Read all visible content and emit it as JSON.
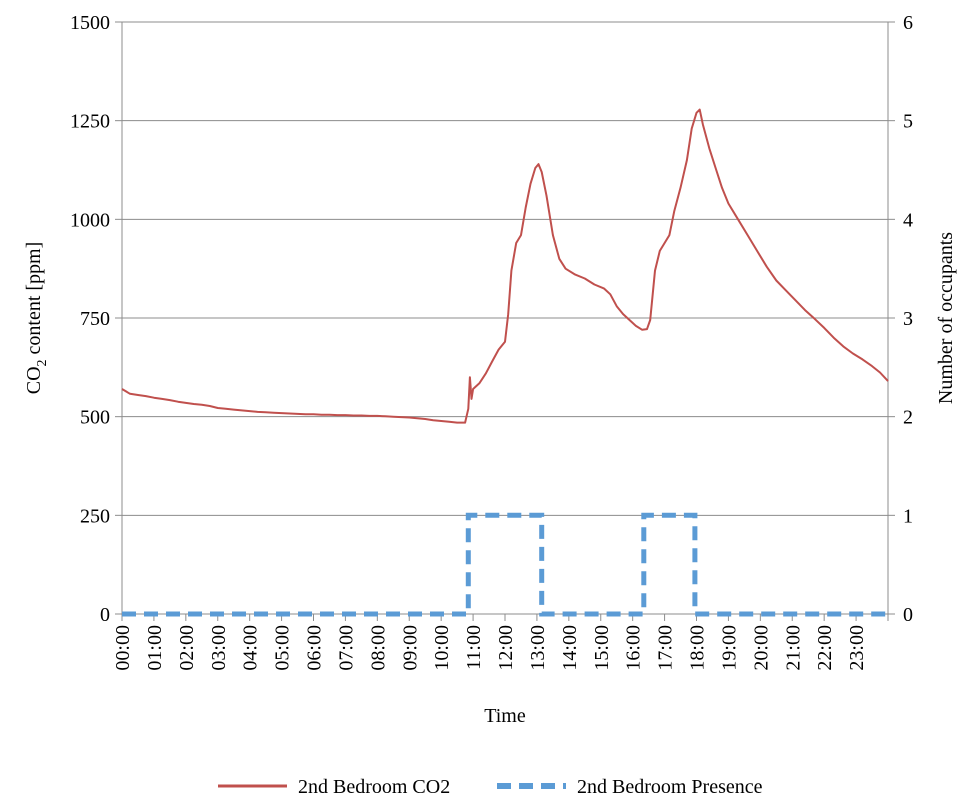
{
  "chart_data": {
    "type": "line",
    "xlabel": "Time",
    "x_ticks": [
      "00:00",
      "01:00",
      "02:00",
      "03:00",
      "04:00",
      "05:00",
      "06:00",
      "07:00",
      "08:00",
      "09:00",
      "10:00",
      "11:00",
      "12:00",
      "13:00",
      "14:00",
      "15:00",
      "16:00",
      "17:00",
      "18:00",
      "19:00",
      "20:00",
      "21:00",
      "22:00",
      "23:00"
    ],
    "x_range_hours": [
      0,
      24
    ],
    "y_left": {
      "label_main": "CO",
      "label_sub": "2",
      "label_rest": " content [ppm]",
      "ylim": [
        0,
        1500
      ],
      "ticks": [
        0,
        250,
        500,
        750,
        1000,
        1250,
        1500
      ]
    },
    "y_right": {
      "label": "Number of occupants",
      "ylim": [
        0,
        6
      ],
      "ticks": [
        0,
        1,
        2,
        3,
        4,
        5,
        6
      ]
    },
    "grid": "horizontal",
    "legend_position": "bottom",
    "series": [
      {
        "name": "2nd Bedroom CO2",
        "axis": "left",
        "color": "#c0504d",
        "style": "solid",
        "points": [
          [
            0.0,
            570
          ],
          [
            0.25,
            558
          ],
          [
            0.5,
            555
          ],
          [
            0.75,
            552
          ],
          [
            1.0,
            548
          ],
          [
            1.25,
            545
          ],
          [
            1.5,
            542
          ],
          [
            1.75,
            538
          ],
          [
            2.0,
            535
          ],
          [
            2.25,
            532
          ],
          [
            2.5,
            530
          ],
          [
            2.75,
            527
          ],
          [
            3.0,
            522
          ],
          [
            3.25,
            520
          ],
          [
            3.5,
            518
          ],
          [
            3.75,
            516
          ],
          [
            4.0,
            514
          ],
          [
            4.25,
            512
          ],
          [
            4.5,
            511
          ],
          [
            4.75,
            510
          ],
          [
            5.0,
            509
          ],
          [
            5.25,
            508
          ],
          [
            5.5,
            507
          ],
          [
            5.75,
            506
          ],
          [
            6.0,
            506
          ],
          [
            6.25,
            505
          ],
          [
            6.5,
            505
          ],
          [
            6.75,
            504
          ],
          [
            7.0,
            504
          ],
          [
            7.25,
            503
          ],
          [
            7.5,
            503
          ],
          [
            7.75,
            502
          ],
          [
            8.0,
            502
          ],
          [
            8.25,
            501
          ],
          [
            8.5,
            500
          ],
          [
            8.75,
            499
          ],
          [
            9.0,
            498
          ],
          [
            9.25,
            496
          ],
          [
            9.5,
            494
          ],
          [
            9.75,
            491
          ],
          [
            10.0,
            489
          ],
          [
            10.25,
            487
          ],
          [
            10.5,
            485
          ],
          [
            10.75,
            485
          ],
          [
            10.85,
            520
          ],
          [
            10.9,
            600
          ],
          [
            10.95,
            545
          ],
          [
            11.0,
            570
          ],
          [
            11.2,
            585
          ],
          [
            11.4,
            610
          ],
          [
            11.6,
            640
          ],
          [
            11.8,
            670
          ],
          [
            12.0,
            690
          ],
          [
            12.1,
            760
          ],
          [
            12.2,
            870
          ],
          [
            12.35,
            940
          ],
          [
            12.5,
            960
          ],
          [
            12.65,
            1030
          ],
          [
            12.8,
            1090
          ],
          [
            12.95,
            1130
          ],
          [
            13.05,
            1140
          ],
          [
            13.15,
            1120
          ],
          [
            13.3,
            1060
          ],
          [
            13.5,
            960
          ],
          [
            13.7,
            900
          ],
          [
            13.9,
            875
          ],
          [
            14.2,
            860
          ],
          [
            14.5,
            850
          ],
          [
            14.8,
            835
          ],
          [
            15.1,
            825
          ],
          [
            15.3,
            810
          ],
          [
            15.5,
            780
          ],
          [
            15.7,
            760
          ],
          [
            15.9,
            745
          ],
          [
            16.1,
            730
          ],
          [
            16.3,
            720
          ],
          [
            16.45,
            722
          ],
          [
            16.55,
            745
          ],
          [
            16.7,
            870
          ],
          [
            16.85,
            920
          ],
          [
            17.0,
            940
          ],
          [
            17.15,
            960
          ],
          [
            17.3,
            1020
          ],
          [
            17.5,
            1080
          ],
          [
            17.7,
            1150
          ],
          [
            17.85,
            1230
          ],
          [
            18.0,
            1270
          ],
          [
            18.1,
            1278
          ],
          [
            18.2,
            1240
          ],
          [
            18.4,
            1180
          ],
          [
            18.6,
            1130
          ],
          [
            18.8,
            1080
          ],
          [
            19.0,
            1040
          ],
          [
            19.3,
            1000
          ],
          [
            19.6,
            960
          ],
          [
            19.9,
            920
          ],
          [
            20.2,
            880
          ],
          [
            20.5,
            845
          ],
          [
            20.8,
            820
          ],
          [
            21.1,
            795
          ],
          [
            21.4,
            770
          ],
          [
            21.7,
            748
          ],
          [
            22.0,
            725
          ],
          [
            22.3,
            700
          ],
          [
            22.6,
            678
          ],
          [
            22.9,
            660
          ],
          [
            23.2,
            645
          ],
          [
            23.5,
            628
          ],
          [
            23.75,
            612
          ],
          [
            24.0,
            590
          ]
        ]
      },
      {
        "name": "2nd Bedroom Presence",
        "axis": "right",
        "color": "#5b9bd5",
        "style": "dashed",
        "points": [
          [
            0,
            0
          ],
          [
            10.85,
            0
          ],
          [
            10.85,
            1
          ],
          [
            13.15,
            1
          ],
          [
            13.15,
            0
          ],
          [
            16.35,
            0
          ],
          [
            16.35,
            1
          ],
          [
            17.95,
            1
          ],
          [
            17.95,
            0
          ],
          [
            24,
            0
          ]
        ]
      }
    ]
  }
}
